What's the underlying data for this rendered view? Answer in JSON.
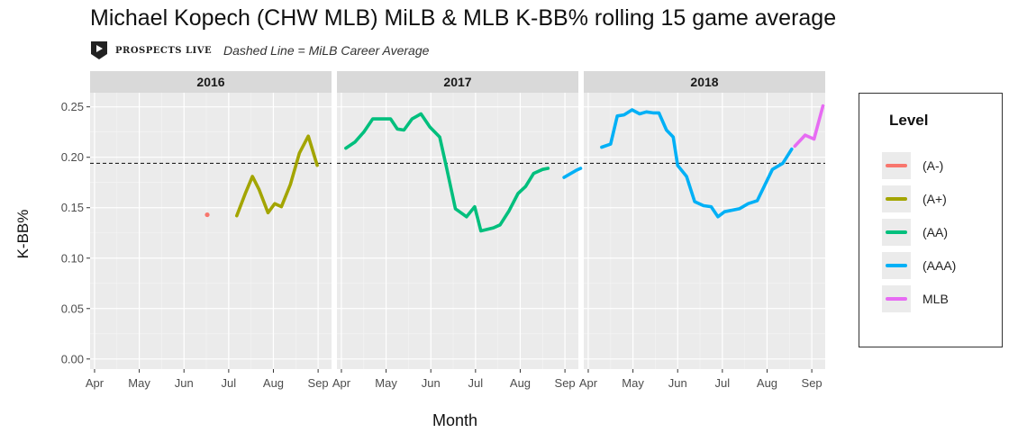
{
  "header": {
    "title": "Michael Kopech (CHW MLB) MiLB & MLB K-BB% rolling 15 game average",
    "brand": "PROSPECTS LIVE",
    "subtitle": "Dashed Line = MiLB Career Average"
  },
  "chart_data": {
    "type": "line",
    "title": "Michael Kopech (CHW MLB) MiLB & MLB K-BB% rolling 15 game average",
    "subtitle": "Dashed Line = MiLB Career Average",
    "xlabel": "Month",
    "ylabel": "K-BB%",
    "ylim": [
      -0.01,
      0.264
    ],
    "yticks": [
      0.0,
      0.05,
      0.1,
      0.15,
      0.2,
      0.25
    ],
    "ytick_labels": [
      "0.00",
      "0.05",
      "0.10",
      "0.15",
      "0.20",
      "0.25"
    ],
    "xlim": [
      -0.1,
      5.3
    ],
    "xticks": [
      0,
      1,
      2,
      3,
      4,
      5
    ],
    "xtick_labels": [
      "Apr",
      "May",
      "Jun",
      "Jul",
      "Aug",
      "Sep"
    ],
    "reference_line": {
      "y": 0.194,
      "style": "dashed",
      "label": "MiLB Career Average"
    },
    "grid": true,
    "legend": {
      "title": "Level",
      "position": "right"
    },
    "colors": {
      "(A-)": "#F8766D",
      "(A+)": "#A3A500",
      "(AA)": "#00BF7D",
      "(AAA)": "#00B0F6",
      "MLB": "#E76BF3"
    },
    "panels": [
      {
        "label": "2016",
        "series": [
          {
            "name": "(A-)",
            "points": [
              [
                2.52,
                0.143
              ]
            ]
          },
          {
            "name": "(A+)",
            "points": [
              [
                3.18,
                0.142
              ],
              [
                3.38,
                0.165
              ],
              [
                3.53,
                0.181
              ],
              [
                3.68,
                0.168
              ],
              [
                3.88,
                0.145
              ],
              [
                4.03,
                0.154
              ],
              [
                4.18,
                0.151
              ],
              [
                4.38,
                0.173
              ],
              [
                4.58,
                0.204
              ],
              [
                4.78,
                0.221
              ],
              [
                4.98,
                0.192
              ]
            ]
          }
        ]
      },
      {
        "label": "2017",
        "series": [
          {
            "name": "(AA)",
            "points": [
              [
                0.1,
                0.209
              ],
              [
                0.3,
                0.215
              ],
              [
                0.5,
                0.225
              ],
              [
                0.7,
                0.238
              ],
              [
                0.9,
                0.238
              ],
              [
                1.1,
                0.238
              ],
              [
                1.25,
                0.228
              ],
              [
                1.4,
                0.227
              ],
              [
                1.58,
                0.238
              ],
              [
                1.78,
                0.243
              ],
              [
                1.98,
                0.23
              ],
              [
                2.2,
                0.22
              ],
              [
                2.35,
                0.19
              ],
              [
                2.55,
                0.149
              ],
              [
                2.8,
                0.141
              ],
              [
                2.98,
                0.151
              ],
              [
                3.12,
                0.127
              ],
              [
                3.4,
                0.13
              ],
              [
                3.55,
                0.133
              ],
              [
                3.75,
                0.147
              ],
              [
                3.95,
                0.164
              ],
              [
                4.12,
                0.171
              ],
              [
                4.3,
                0.184
              ],
              [
                4.5,
                0.188
              ],
              [
                4.62,
                0.189
              ]
            ]
          },
          {
            "name": "(AAA)",
            "points": [
              [
                4.98,
                0.18
              ],
              [
                5.25,
                0.187
              ],
              [
                5.35,
                0.189
              ]
            ]
          }
        ]
      },
      {
        "label": "2018",
        "series": [
          {
            "name": "(AAA)",
            "points": [
              [
                0.3,
                0.21
              ],
              [
                0.5,
                0.213
              ],
              [
                0.65,
                0.241
              ],
              [
                0.8,
                0.242
              ],
              [
                0.98,
                0.247
              ],
              [
                1.15,
                0.243
              ],
              [
                1.3,
                0.245
              ],
              [
                1.45,
                0.244
              ],
              [
                1.58,
                0.244
              ],
              [
                1.75,
                0.227
              ],
              [
                1.9,
                0.22
              ],
              [
                2.0,
                0.192
              ],
              [
                2.2,
                0.181
              ],
              [
                2.38,
                0.156
              ],
              [
                2.58,
                0.152
              ],
              [
                2.75,
                0.151
              ],
              [
                2.9,
                0.141
              ],
              [
                3.05,
                0.146
              ],
              [
                3.38,
                0.149
              ],
              [
                3.58,
                0.154
              ],
              [
                3.78,
                0.157
              ],
              [
                4.12,
                0.188
              ],
              [
                4.35,
                0.194
              ],
              [
                4.55,
                0.208
              ]
            ]
          },
          {
            "name": "MLB",
            "points": [
              [
                4.62,
                0.211
              ],
              [
                4.85,
                0.222
              ],
              [
                5.05,
                0.218
              ],
              [
                5.25,
                0.251
              ]
            ]
          }
        ]
      }
    ]
  }
}
